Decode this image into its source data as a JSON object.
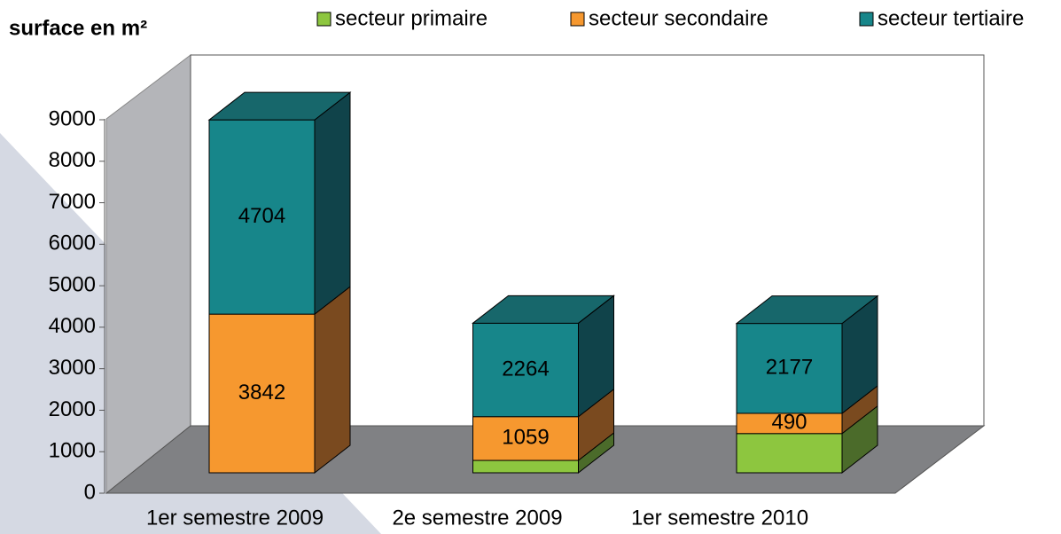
{
  "chart_data": {
    "type": "bar3d_stacked",
    "y_axis_label": "surface en m²",
    "categories": [
      "1er semestre 2009",
      "2e semestre 2009",
      "1er semestre 2010"
    ],
    "series": [
      {
        "name": "secteur primaire",
        "color": "#8dc63f",
        "side": "#4b6b2a",
        "top": "#6f9c33",
        "values": [
          0,
          300,
          950
        ]
      },
      {
        "name": "secteur secondaire",
        "color": "#f6982f",
        "side": "#7a4a1f",
        "top": "#c77a26",
        "values": [
          3842,
          1059,
          490
        ]
      },
      {
        "name": "secteur tertiaire",
        "color": "#17868a",
        "side": "#10434a",
        "top": "#17676b",
        "values": [
          4704,
          2264,
          2177
        ]
      }
    ],
    "labeled_series": [
      1,
      2
    ],
    "ylim": [
      0,
      9000
    ],
    "yticks": [
      0,
      1000,
      2000,
      3000,
      4000,
      5000,
      6000,
      7000,
      8000,
      9000
    ]
  }
}
